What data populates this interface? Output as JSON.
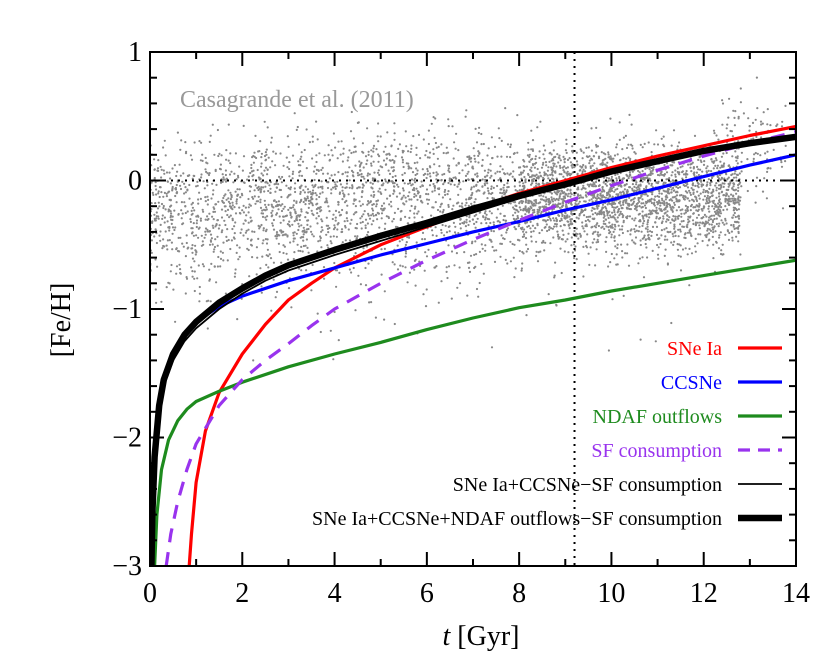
{
  "chart_data": {
    "type": "line",
    "annotation": "Casagrande et al. (2011)",
    "xlabel_italic": "t",
    "xlabel_rest": " [Gyr]",
    "ylabel": "[Fe/H]",
    "xlim": [
      0,
      14
    ],
    "ylim": [
      -3,
      1
    ],
    "xticks": [
      0,
      2,
      4,
      6,
      8,
      10,
      12,
      14
    ],
    "yticks": [
      -3,
      -2,
      -1,
      0,
      1
    ],
    "ytick_labels": [
      "−3",
      "−2",
      "−1",
      "0",
      "1"
    ],
    "reference_lines": {
      "x": 9.2,
      "y": 0
    },
    "legend_position": "lower-right",
    "series": [
      {
        "name": "SNe Ia",
        "color": "#ff0000",
        "dash": "solid",
        "width": "medium",
        "points": [
          [
            0.85,
            -3.0
          ],
          [
            0.9,
            -2.75
          ],
          [
            1.0,
            -2.35
          ],
          [
            1.2,
            -1.95
          ],
          [
            1.5,
            -1.65
          ],
          [
            2.0,
            -1.35
          ],
          [
            2.5,
            -1.12
          ],
          [
            3.0,
            -0.93
          ],
          [
            3.5,
            -0.8
          ],
          [
            4.0,
            -0.68
          ],
          [
            5.0,
            -0.5
          ],
          [
            6.0,
            -0.36
          ],
          [
            7.0,
            -0.22
          ],
          [
            8.0,
            -0.1
          ],
          [
            9.0,
            0.0
          ],
          [
            10.0,
            0.1
          ],
          [
            11.0,
            0.19
          ],
          [
            12.0,
            0.27
          ],
          [
            13.0,
            0.35
          ],
          [
            14.0,
            0.42
          ]
        ]
      },
      {
        "name": "CCSNe",
        "color": "#0000ff",
        "dash": "solid",
        "width": "medium",
        "points": [
          [
            0.03,
            -3.0
          ],
          [
            0.05,
            -2.6
          ],
          [
            0.1,
            -2.15
          ],
          [
            0.2,
            -1.75
          ],
          [
            0.3,
            -1.55
          ],
          [
            0.5,
            -1.35
          ],
          [
            0.75,
            -1.2
          ],
          [
            1.0,
            -1.1
          ],
          [
            1.5,
            -0.98
          ],
          [
            2.0,
            -0.9
          ],
          [
            3.0,
            -0.78
          ],
          [
            4.0,
            -0.68
          ],
          [
            5.0,
            -0.58
          ],
          [
            6.0,
            -0.49
          ],
          [
            7.0,
            -0.4
          ],
          [
            8.0,
            -0.32
          ],
          [
            9.0,
            -0.23
          ],
          [
            10.0,
            -0.15
          ],
          [
            11.0,
            -0.06
          ],
          [
            12.0,
            0.03
          ],
          [
            13.0,
            0.12
          ],
          [
            14.0,
            0.2
          ]
        ]
      },
      {
        "name": "NDAF outflows",
        "color": "#1e8b1e",
        "dash": "solid",
        "width": "medium",
        "points": [
          [
            0.1,
            -3.0
          ],
          [
            0.15,
            -2.6
          ],
          [
            0.25,
            -2.25
          ],
          [
            0.4,
            -2.02
          ],
          [
            0.6,
            -1.87
          ],
          [
            0.8,
            -1.78
          ],
          [
            1.0,
            -1.72
          ],
          [
            1.5,
            -1.64
          ],
          [
            2.0,
            -1.57
          ],
          [
            3.0,
            -1.45
          ],
          [
            4.0,
            -1.35
          ],
          [
            5.0,
            -1.26
          ],
          [
            6.0,
            -1.16
          ],
          [
            7.0,
            -1.07
          ],
          [
            8.0,
            -0.99
          ],
          [
            9.0,
            -0.93
          ],
          [
            10.0,
            -0.86
          ],
          [
            11.0,
            -0.8
          ],
          [
            12.0,
            -0.74
          ],
          [
            13.0,
            -0.68
          ],
          [
            14.0,
            -0.62
          ]
        ]
      },
      {
        "name": "SF consumption",
        "color": "#9933ee",
        "dash": "dashed",
        "width": "medium",
        "points": [
          [
            0.35,
            -3.0
          ],
          [
            0.45,
            -2.75
          ],
          [
            0.6,
            -2.5
          ],
          [
            0.8,
            -2.25
          ],
          [
            1.0,
            -2.05
          ],
          [
            1.5,
            -1.75
          ],
          [
            2.0,
            -1.55
          ],
          [
            2.5,
            -1.4
          ],
          [
            3.0,
            -1.27
          ],
          [
            3.5,
            -1.13
          ],
          [
            4.0,
            -1.0
          ],
          [
            5.0,
            -0.8
          ],
          [
            6.0,
            -0.62
          ],
          [
            7.0,
            -0.46
          ],
          [
            8.0,
            -0.31
          ],
          [
            9.0,
            -0.17
          ],
          [
            10.0,
            -0.04
          ],
          [
            11.0,
            0.08
          ],
          [
            12.0,
            0.19
          ],
          [
            13.0,
            0.29
          ],
          [
            14.0,
            0.38
          ]
        ]
      },
      {
        "name": "SNe Ia+CCSNe−SF consumption",
        "color": "#000000",
        "dash": "solid",
        "width": "thin",
        "points": [
          [
            0.04,
            -3.0
          ],
          [
            0.07,
            -2.6
          ],
          [
            0.12,
            -2.2
          ],
          [
            0.2,
            -1.85
          ],
          [
            0.3,
            -1.6
          ],
          [
            0.5,
            -1.4
          ],
          [
            0.75,
            -1.25
          ],
          [
            1.0,
            -1.15
          ],
          [
            1.5,
            -1.0
          ],
          [
            2.0,
            -0.88
          ],
          [
            2.5,
            -0.78
          ],
          [
            3.0,
            -0.7
          ],
          [
            4.0,
            -0.58
          ],
          [
            5.0,
            -0.47
          ],
          [
            6.0,
            -0.36
          ],
          [
            7.0,
            -0.25
          ],
          [
            8.0,
            -0.14
          ],
          [
            9.0,
            -0.04
          ],
          [
            10.0,
            0.06
          ],
          [
            11.0,
            0.14
          ],
          [
            12.0,
            0.22
          ],
          [
            13.0,
            0.28
          ],
          [
            14.0,
            0.33
          ]
        ]
      },
      {
        "name": "SNe Ia+CCSNe+NDAF outflows−SF consumption",
        "color": "#000000",
        "dash": "solid",
        "width": "thick",
        "points": [
          [
            0.03,
            -3.0
          ],
          [
            0.05,
            -2.6
          ],
          [
            0.1,
            -2.15
          ],
          [
            0.2,
            -1.75
          ],
          [
            0.3,
            -1.55
          ],
          [
            0.5,
            -1.35
          ],
          [
            0.75,
            -1.2
          ],
          [
            1.0,
            -1.1
          ],
          [
            1.5,
            -0.95
          ],
          [
            2.0,
            -0.84
          ],
          [
            2.5,
            -0.74
          ],
          [
            3.0,
            -0.66
          ],
          [
            4.0,
            -0.54
          ],
          [
            5.0,
            -0.43
          ],
          [
            6.0,
            -0.33
          ],
          [
            7.0,
            -0.22
          ],
          [
            8.0,
            -0.12
          ],
          [
            9.0,
            -0.03
          ],
          [
            10.0,
            0.07
          ],
          [
            11.0,
            0.15
          ],
          [
            12.0,
            0.23
          ],
          [
            13.0,
            0.29
          ],
          [
            14.0,
            0.34
          ]
        ]
      }
    ],
    "scatter_clouds": [
      {
        "x_range": [
          0.0,
          3.5
        ],
        "y_mean": -0.22,
        "y_sd": 0.28,
        "n": 900
      },
      {
        "x_range": [
          3.5,
          8.0
        ],
        "y_mean": -0.12,
        "y_sd": 0.26,
        "n": 1100
      },
      {
        "x_range": [
          8.0,
          12.8
        ],
        "y_mean": -0.12,
        "y_sd": 0.2,
        "n": 2300
      },
      {
        "x_range": [
          12.2,
          13.8
        ],
        "y_mean": 0.28,
        "y_sd": 0.22,
        "n": 120
      },
      {
        "x_range": [
          0.0,
          12.0
        ],
        "y_mean": -0.6,
        "y_sd": 0.35,
        "n": 160
      }
    ],
    "scatter_color": "#888888"
  }
}
